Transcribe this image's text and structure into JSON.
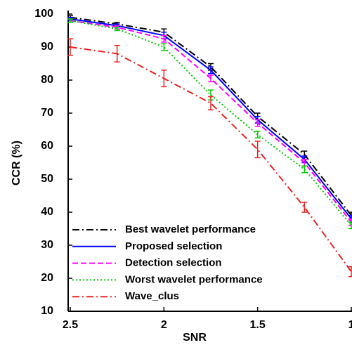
{
  "chart_data": {
    "type": "line",
    "xlabel": "SNR",
    "ylabel": "CCR (%)",
    "x": [
      2.5,
      2.25,
      2,
      1.75,
      1.5,
      1.25,
      1
    ],
    "xlim": [
      2.5,
      1
    ],
    "xticks": [
      2.5,
      2,
      1.5,
      1
    ],
    "ylim": [
      10,
      100
    ],
    "yticks": [
      10,
      20,
      30,
      40,
      50,
      60,
      70,
      80,
      90,
      100
    ],
    "legend": "lower left",
    "series": [
      {
        "name": "Best wavelet performance",
        "color": "#000000",
        "dash": "dashdot",
        "values": [
          99,
          97,
          94.5,
          84,
          69,
          57.5,
          39
        ],
        "errors": [
          0.5,
          0.5,
          1,
          1,
          1,
          1,
          1
        ]
      },
      {
        "name": "Proposed selection",
        "color": "#0000ff",
        "dash": "solid",
        "values": [
          98.5,
          96.5,
          93.5,
          83,
          68,
          56,
          38
        ],
        "errors": [
          0.5,
          0.5,
          1,
          1,
          1,
          1,
          1
        ]
      },
      {
        "name": "Detection selection",
        "color": "#ff00ff",
        "dash": "dashed",
        "values": [
          98,
          96,
          92.5,
          80.5,
          67,
          55,
          37
        ],
        "errors": [
          0.5,
          0.5,
          1,
          1,
          1,
          1,
          1
        ]
      },
      {
        "name": "Worst wavelet performance",
        "color": "#00cc00",
        "dash": "dotted",
        "values": [
          98,
          95.5,
          90,
          75.5,
          63.5,
          53,
          36
        ],
        "errors": [
          0.5,
          0.5,
          1,
          1.5,
          1,
          1,
          1
        ]
      },
      {
        "name": "Wave_clus",
        "color": "#ee2222",
        "dash": "dashdot",
        "values": [
          90,
          88,
          80.5,
          73,
          59,
          41.5,
          22
        ],
        "errors": [
          2.5,
          2.5,
          2.5,
          2,
          2.5,
          1.5,
          1.5
        ]
      }
    ]
  }
}
